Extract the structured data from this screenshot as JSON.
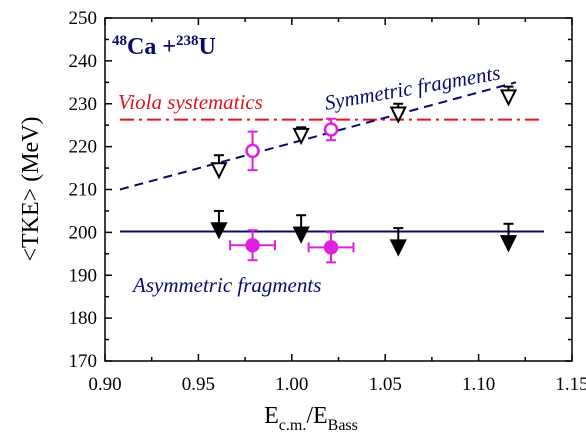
{
  "chart_data": {
    "type": "scatter",
    "title_parts": {
      "a_mass": "48",
      "a_sym": "Ca +",
      "b_mass": "238",
      "b_sym": "U"
    },
    "xlabel": {
      "main": "E",
      "sub1": "c.m.",
      "slash": "/E",
      "sub2": "Bass"
    },
    "ylabel": "<TKE> (MeV)",
    "xlim": [
      0.9,
      1.15
    ],
    "ylim": [
      170,
      250
    ],
    "x_ticks": [
      "0.90",
      "0.95",
      "1.00",
      "1.05",
      "1.10",
      "1.15"
    ],
    "y_ticks": [
      "170",
      "180",
      "190",
      "200",
      "210",
      "220",
      "230",
      "240",
      "250"
    ],
    "annotations": {
      "viola": "Viola systematics",
      "symmetric": "Symmetric fragments",
      "asymmetric": "Asymmetric fragments"
    },
    "colors": {
      "navy": "#0a0a6e",
      "red": "#e0151c",
      "magenta": "#e020e0",
      "black": "#000000"
    },
    "lines": {
      "viola": {
        "y": 226.3,
        "x": [
          0.908,
          1.135
        ]
      },
      "symmetric_fit": {
        "x": [
          0.908,
          1.12
        ],
        "y": [
          210,
          235
        ]
      },
      "asymmetric_fit": {
        "y": 200.2,
        "x": [
          0.908,
          1.135
        ]
      }
    },
    "series": [
      {
        "marker": "open-triangle-down",
        "points": [
          {
            "x": 0.961,
            "y": 214.5,
            "err_up": 3.5,
            "err_down": 0
          },
          {
            "x": 1.005,
            "y": 222.5,
            "err_up": 2.0,
            "err_down": 0
          },
          {
            "x": 1.057,
            "y": 227.5,
            "err_up": 2.5,
            "err_down": 0
          },
          {
            "x": 1.116,
            "y": 231.5,
            "err_up": 2.5,
            "err_down": 0
          }
        ]
      },
      {
        "marker": "filled-triangle-down",
        "points": [
          {
            "x": 0.961,
            "y": 200.5,
            "err_up": 4.5,
            "err_down": 0
          },
          {
            "x": 1.005,
            "y": 199.5,
            "err_up": 4.5,
            "err_down": 0
          },
          {
            "x": 1.057,
            "y": 196.5,
            "err_up": 4.5,
            "err_down": 0
          },
          {
            "x": 1.116,
            "y": 197.5,
            "err_up": 4.5,
            "err_down": 0
          }
        ]
      },
      {
        "marker": "open-circle",
        "points": [
          {
            "x": 0.979,
            "y": 219,
            "err_y": 4.5,
            "err_x": 0
          },
          {
            "x": 1.021,
            "y": 224,
            "err_y": 2.5,
            "err_x": 0
          }
        ]
      },
      {
        "marker": "filled-circle",
        "points": [
          {
            "x": 0.979,
            "y": 197,
            "err_y": 3.5,
            "err_x": 0.012
          },
          {
            "x": 1.021,
            "y": 196.5,
            "err_y": 3.5,
            "err_x": 0.012
          }
        ]
      }
    ]
  }
}
